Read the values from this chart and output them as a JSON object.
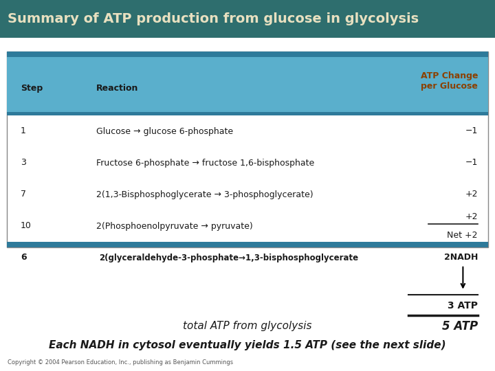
{
  "title": "Summary of ATP production from glucose in glycolysis",
  "title_bg": "#2e6e6e",
  "title_color": "#e8e0c0",
  "table_bg": "#d4edf5",
  "table_header_bg": "#5aafcc",
  "table_border_color": "#2e7a9a",
  "table_outer_border": "#888888",
  "table_steps": [
    "1",
    "3",
    "7",
    "10"
  ],
  "table_reactions": [
    "Glucose → glucose 6-phosphate",
    "Fructose 6-phosphate → fructose 1,6-bisphosphate",
    "2(1,3-Bisphosphoglycerate → 3-phosphoglycerate)",
    "2(Phosphoenolpyruvate → pyruvate)"
  ],
  "table_atp": [
    "−1",
    "−1",
    "+2",
    "+2"
  ],
  "net_atp": "Net +2",
  "col_headers": [
    "Step",
    "Reaction",
    "ATP Change\nper Glucose"
  ],
  "step6_label": "6",
  "step6_reaction": "2(glyceraldehyde-3-phosphate→1,3-bisphosphoglycerate",
  "step6_nadh": "2NADH",
  "step6_atp": "3 ATP",
  "total_label": "total ATP from glycolysis",
  "total_atp": "5 ATP",
  "bottom_note": "Each NADH in cytosol eventually yields 1.5 ATP (see the next slide)",
  "copyright": "Copyright © 2004 Pearson Education, Inc., publishing as Benjamin Cummings",
  "bg_color": "#ffffff",
  "atp_header_color": "#8b4000"
}
